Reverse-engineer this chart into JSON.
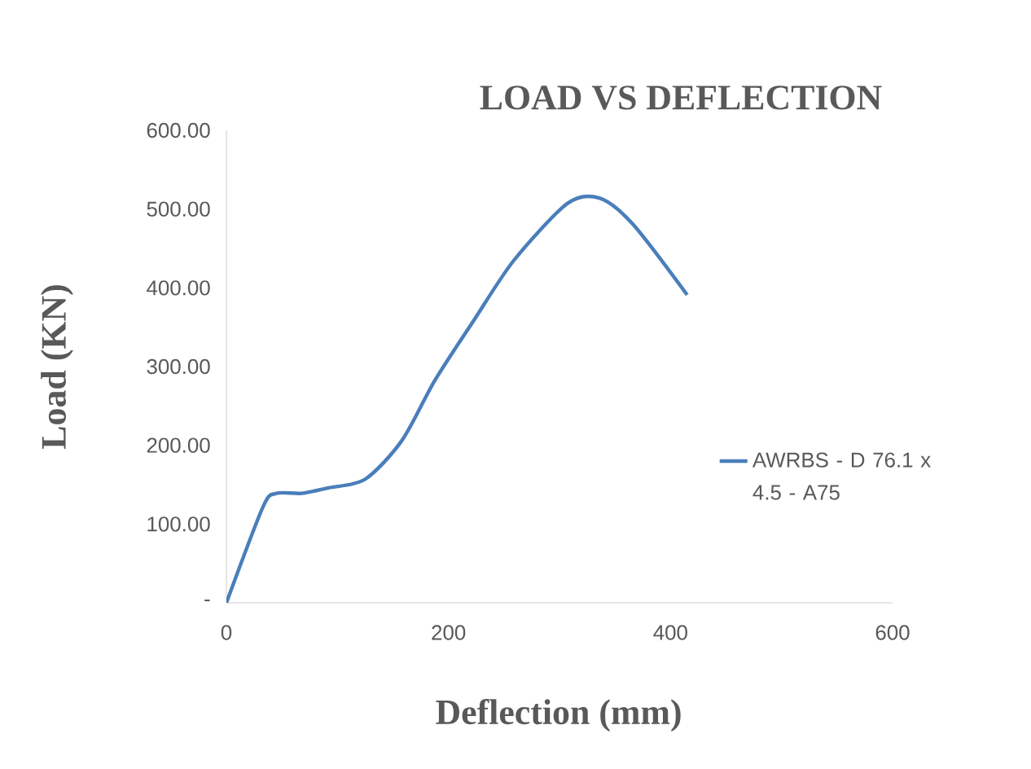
{
  "chart_data": {
    "type": "line",
    "title": "LOAD VS DEFLECTION",
    "xlabel": "Deflection (mm)",
    "ylabel": "Load (KN)",
    "x": [
      0,
      33,
      45,
      68,
      92,
      125,
      158,
      188,
      223,
      259,
      307,
      336,
      366,
      415
    ],
    "series": [
      {
        "name": "AWRBS - D 76.1 x 4.5 - A75",
        "color": "#4a7ebb",
        "values": [
          0,
          122,
          139,
          139,
          146,
          157,
          206,
          283,
          359,
          435,
          507,
          514,
          481,
          391
        ]
      }
    ],
    "xlim": [
      0,
      600
    ],
    "xticks": [
      0,
      200,
      400,
      600
    ],
    "ylim": [
      0,
      600
    ],
    "yticks": [
      {
        "value": 0,
        "label": "-"
      },
      {
        "value": 100,
        "label": "100.00"
      },
      {
        "value": 200,
        "label": "200.00"
      },
      {
        "value": 300,
        "label": "300.00"
      },
      {
        "value": 400,
        "label": "400.00"
      },
      {
        "value": 500,
        "label": "500.00"
      },
      {
        "value": 600,
        "label": "600.00"
      }
    ],
    "grid": false,
    "legend": "right",
    "marker": "none",
    "line_style": "solid"
  }
}
